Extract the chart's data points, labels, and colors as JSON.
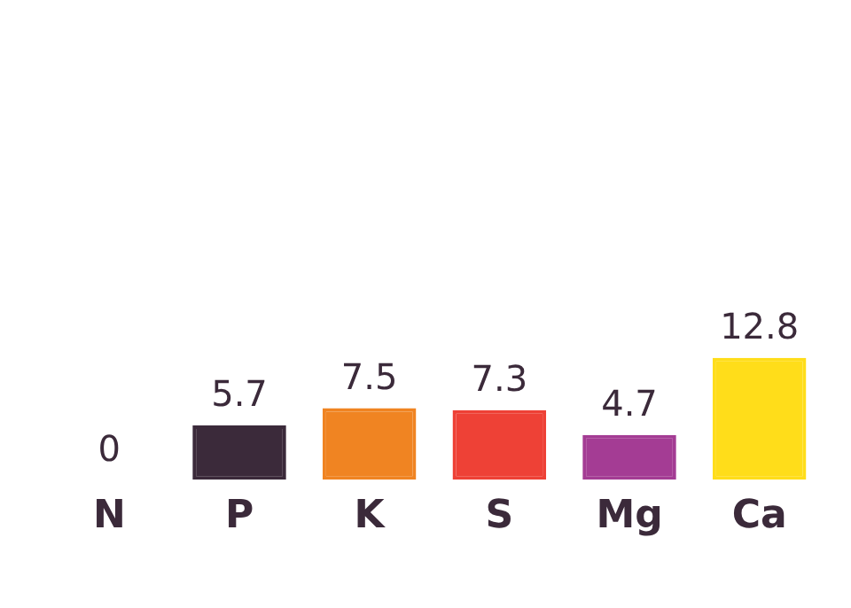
{
  "chart_data": {
    "type": "bar",
    "categories": [
      "N",
      "P",
      "K",
      "S",
      "Mg",
      "Ca"
    ],
    "values": [
      0,
      5.7,
      7.5,
      7.3,
      4.7,
      12.8
    ],
    "colors": [
      "#a8c43a",
      "#3b2a3a",
      "#f08422",
      "#ee4136",
      "#a43c94",
      "#ffdd1a"
    ],
    "data_labels": true,
    "grid": false,
    "legend": false,
    "tick_labels": "x"
  }
}
